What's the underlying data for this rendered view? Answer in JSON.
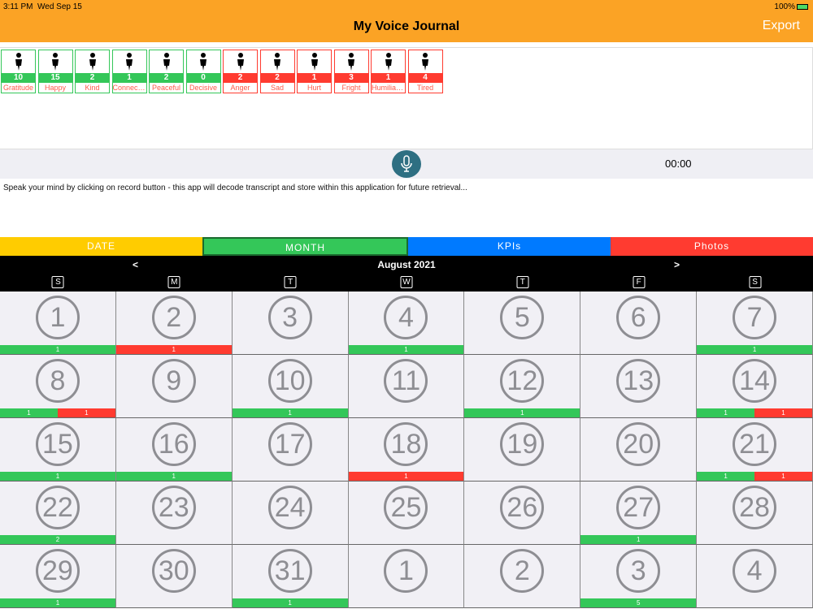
{
  "status": {
    "time": "3:11 PM",
    "date": "Wed Sep 15",
    "battery": "100%"
  },
  "header": {
    "title": "My Voice Journal",
    "export_label": "Export"
  },
  "emotions": [
    {
      "label": "Gratitude",
      "count": "10",
      "tone": "positive"
    },
    {
      "label": "Happy",
      "count": "15",
      "tone": "positive"
    },
    {
      "label": "Kind",
      "count": "2",
      "tone": "positive"
    },
    {
      "label": "Connect…",
      "count": "1",
      "tone": "positive"
    },
    {
      "label": "Peaceful",
      "count": "2",
      "tone": "positive"
    },
    {
      "label": "Decisive",
      "count": "0",
      "tone": "positive"
    },
    {
      "label": "Anger",
      "count": "2",
      "tone": "negative"
    },
    {
      "label": "Sad",
      "count": "2",
      "tone": "negative"
    },
    {
      "label": "Hurt",
      "count": "1",
      "tone": "negative"
    },
    {
      "label": "Fright",
      "count": "3",
      "tone": "negative"
    },
    {
      "label": "Humiliat…",
      "count": "1",
      "tone": "negative"
    },
    {
      "label": "Tired",
      "count": "4",
      "tone": "negative"
    }
  ],
  "recorder": {
    "timer": "00:00",
    "hint": "Speak your mind by clicking on record button  - this app will decode transcript and store within this application for future retrieval..."
  },
  "tabs": [
    {
      "label": "DATE",
      "color": "#ffcc00"
    },
    {
      "label": "MONTH",
      "color": "#34c759"
    },
    {
      "label": "KPIs",
      "color": "#007aff"
    },
    {
      "label": "Photos",
      "color": "#ff3b30"
    }
  ],
  "calendar": {
    "month": "August 2021",
    "prev": "<",
    "next": ">",
    "weekdays": [
      "S",
      "M",
      "T",
      "W",
      "T",
      "F",
      "S"
    ],
    "days": [
      {
        "d": "1",
        "g": "1"
      },
      {
        "d": "2",
        "r": "1"
      },
      {
        "d": "3"
      },
      {
        "d": "4",
        "g": "1"
      },
      {
        "d": "5"
      },
      {
        "d": "6"
      },
      {
        "d": "7",
        "g": "1"
      },
      {
        "d": "8",
        "g": "1",
        "r": "1"
      },
      {
        "d": "9"
      },
      {
        "d": "10",
        "g": "1"
      },
      {
        "d": "11"
      },
      {
        "d": "12",
        "g": "1"
      },
      {
        "d": "13"
      },
      {
        "d": "14",
        "g": "1",
        "r": "1"
      },
      {
        "d": "15",
        "g": "1"
      },
      {
        "d": "16",
        "g": "1"
      },
      {
        "d": "17"
      },
      {
        "d": "18",
        "r": "1"
      },
      {
        "d": "19"
      },
      {
        "d": "20"
      },
      {
        "d": "21",
        "g": "1",
        "r": "1"
      },
      {
        "d": "22",
        "g": "2"
      },
      {
        "d": "23"
      },
      {
        "d": "24"
      },
      {
        "d": "25"
      },
      {
        "d": "26"
      },
      {
        "d": "27",
        "g": "1"
      },
      {
        "d": "28"
      },
      {
        "d": "29",
        "g": "1"
      },
      {
        "d": "30"
      },
      {
        "d": "31",
        "g": "1"
      },
      {
        "d": "1"
      },
      {
        "d": "2"
      },
      {
        "d": "3",
        "g": "5"
      },
      {
        "d": "4"
      }
    ]
  },
  "colors": {
    "positive": "#34c759",
    "negative": "#ff3b30",
    "header": "#fba325"
  }
}
